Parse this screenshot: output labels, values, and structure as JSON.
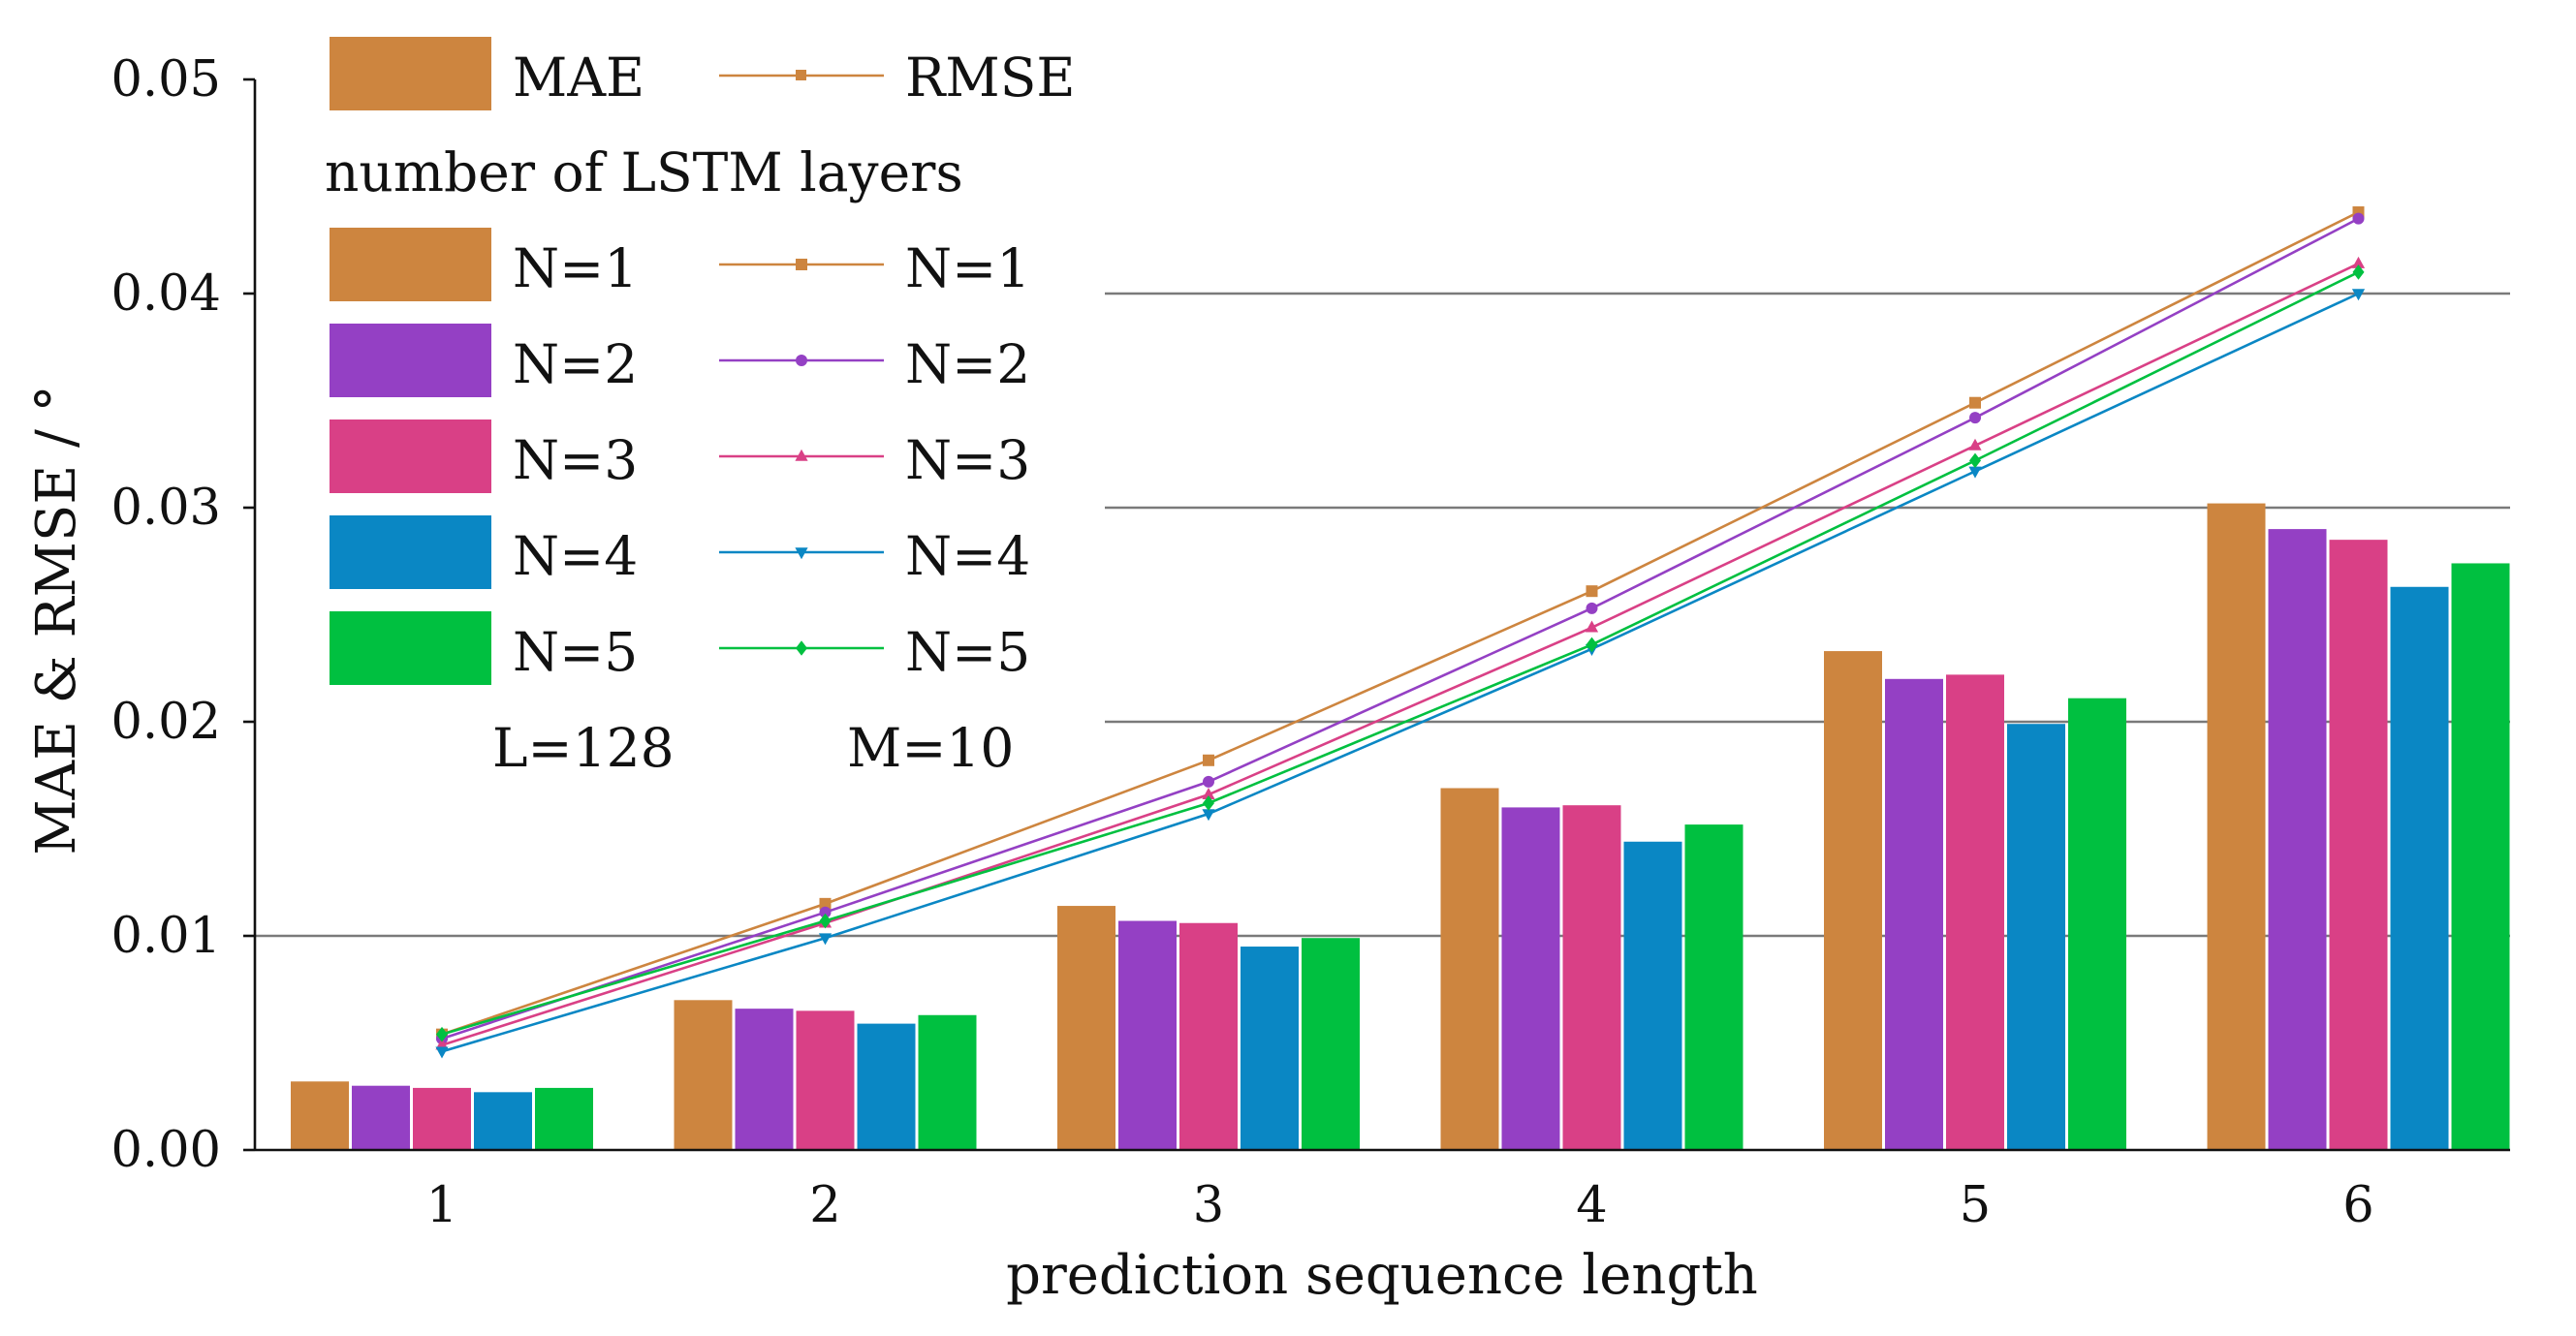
{
  "chart_data": {
    "type": "bar",
    "title": "",
    "xlabel": "prediction sequence length",
    "ylabel": "MAE & RMSE / °",
    "ylim": [
      0.0,
      0.05
    ],
    "yticks": [
      "0.00",
      "0.01",
      "0.02",
      "0.03",
      "0.04",
      "0.05"
    ],
    "yticks_values": [
      0.0,
      0.01,
      0.02,
      0.03,
      0.04,
      0.05
    ],
    "categories": [
      "1",
      "2",
      "3",
      "4",
      "5",
      "6"
    ],
    "grid": true,
    "legend_position": "top-left",
    "legend": {
      "mae_label": "MAE",
      "rmse_label": "RMSE",
      "heading": "number of LSTM layers",
      "footer_left": "L=128",
      "footer_right": "M=10"
    },
    "series": [
      {
        "name": "N=1",
        "color": "#cd853f",
        "marker": "square",
        "mae": [
          0.0032,
          0.007,
          0.0114,
          0.0169,
          0.0233,
          0.0302
        ],
        "rmse": [
          0.0054,
          0.0115,
          0.0182,
          0.0261,
          0.0349,
          0.0438
        ]
      },
      {
        "name": "N=2",
        "color": "#9440c4",
        "marker": "circle",
        "mae": [
          0.003,
          0.0066,
          0.0107,
          0.016,
          0.022,
          0.029
        ],
        "rmse": [
          0.0052,
          0.0111,
          0.0172,
          0.0253,
          0.0342,
          0.0435
        ]
      },
      {
        "name": "N=3",
        "color": "#d94086",
        "marker": "triangle-up",
        "mae": [
          0.0029,
          0.0065,
          0.0106,
          0.0161,
          0.0222,
          0.0285
        ],
        "rmse": [
          0.0049,
          0.0106,
          0.0166,
          0.0244,
          0.0329,
          0.0414
        ]
      },
      {
        "name": "N=4",
        "color": "#0a87c4",
        "marker": "triangle-down",
        "mae": [
          0.0027,
          0.0059,
          0.0095,
          0.0144,
          0.0199,
          0.0263
        ],
        "rmse": [
          0.0046,
          0.0099,
          0.0157,
          0.0234,
          0.0317,
          0.04
        ]
      },
      {
        "name": "N=5",
        "color": "#00c040",
        "marker": "diamond",
        "mae": [
          0.0029,
          0.0063,
          0.0099,
          0.0152,
          0.0211,
          0.0274
        ],
        "rmse": [
          0.0054,
          0.0107,
          0.0162,
          0.0236,
          0.0322,
          0.041
        ]
      }
    ]
  }
}
